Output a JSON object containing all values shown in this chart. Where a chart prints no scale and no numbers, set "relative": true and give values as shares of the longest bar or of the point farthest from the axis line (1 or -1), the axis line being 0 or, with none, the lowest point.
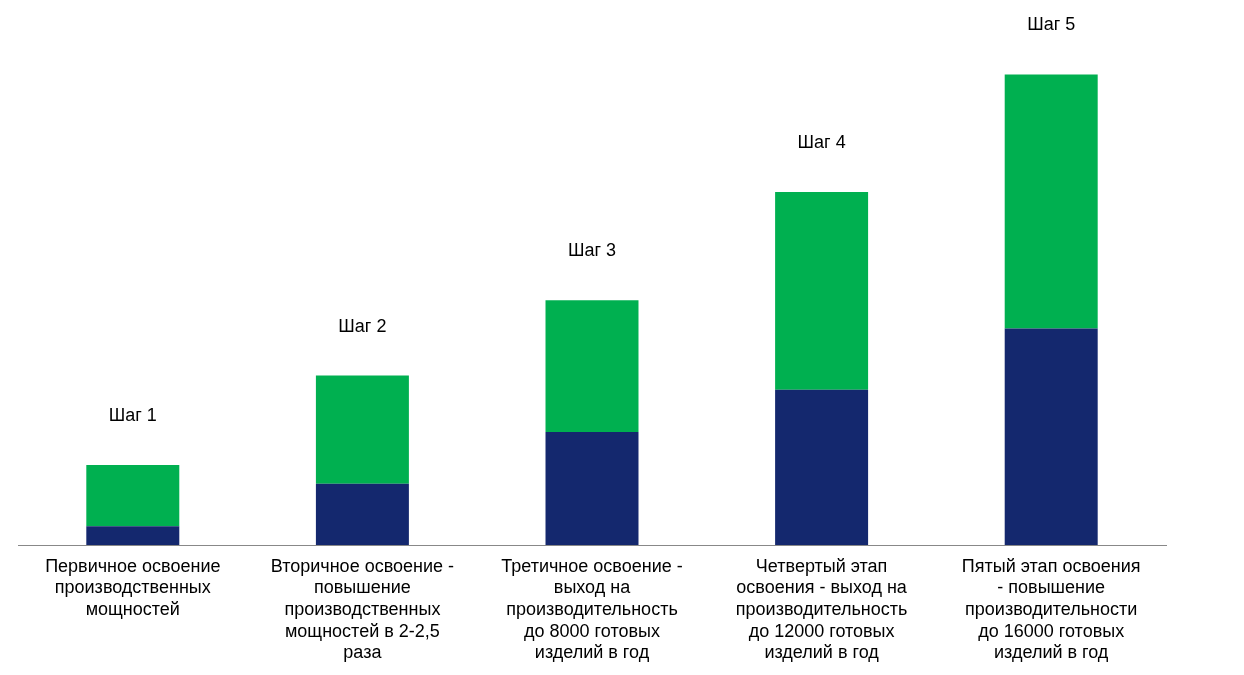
{
  "chart_data": {
    "type": "bar",
    "relative": true,
    "stacked": true,
    "categories": [
      "Первичное освоение производственных мощностей",
      "Вторичное освоение - повышение производственных мощностей в 2-2,5 раза",
      "Третичное освоение - выход на производительность до 8000 готовых изделий в год",
      "Четвертый этап освоения - выход на производительность до 12000 готовых изделий в год",
      "Пятый этап освоения - повышение производительности до 16000 готовых изделий в год"
    ],
    "series": [
      {
        "color": "#14286e",
        "values": [
          0.04,
          0.13,
          0.24,
          0.33,
          0.46
        ]
      },
      {
        "color": "#00b050",
        "values": [
          0.13,
          0.23,
          0.28,
          0.42,
          0.54
        ]
      }
    ],
    "annotations": [
      "Шаг 1",
      "Шаг 2",
      "Шаг 3",
      "Шаг 4",
      "Шаг 5"
    ]
  }
}
